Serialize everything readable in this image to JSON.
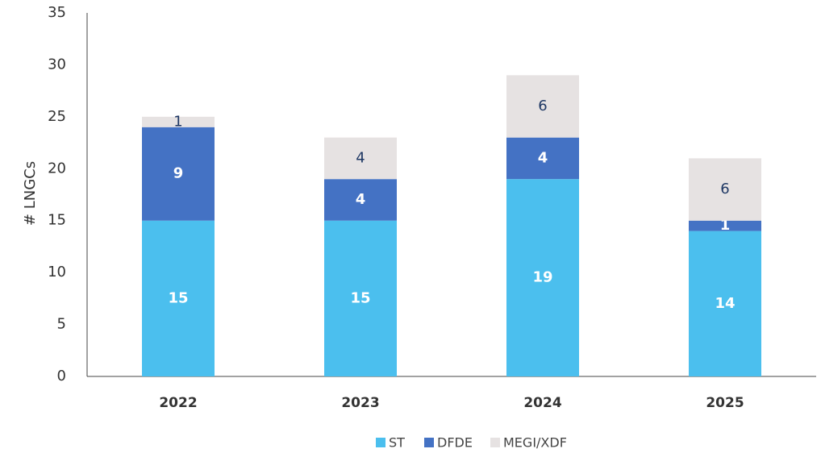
{
  "chart_data": {
    "type": "stacked_bar",
    "y_label": "# LNGCs",
    "categories": [
      "2022",
      "2023",
      "2024",
      "2025"
    ],
    "series": [
      {
        "name": "ST",
        "color": "#4bbfee",
        "values": [
          15,
          15,
          19,
          14
        ]
      },
      {
        "name": "DFDE",
        "color": "#4472c4",
        "values": [
          9,
          4,
          4,
          1
        ]
      },
      {
        "name": "MEGI/XDF",
        "color": "#e6e2e2",
        "values": [
          1,
          4,
          6,
          6
        ]
      }
    ],
    "ylim": [
      0,
      35
    ],
    "yticks": [
      0,
      5,
      10,
      15,
      20,
      25,
      30,
      35
    ],
    "grid": false,
    "legend": "bottom"
  }
}
